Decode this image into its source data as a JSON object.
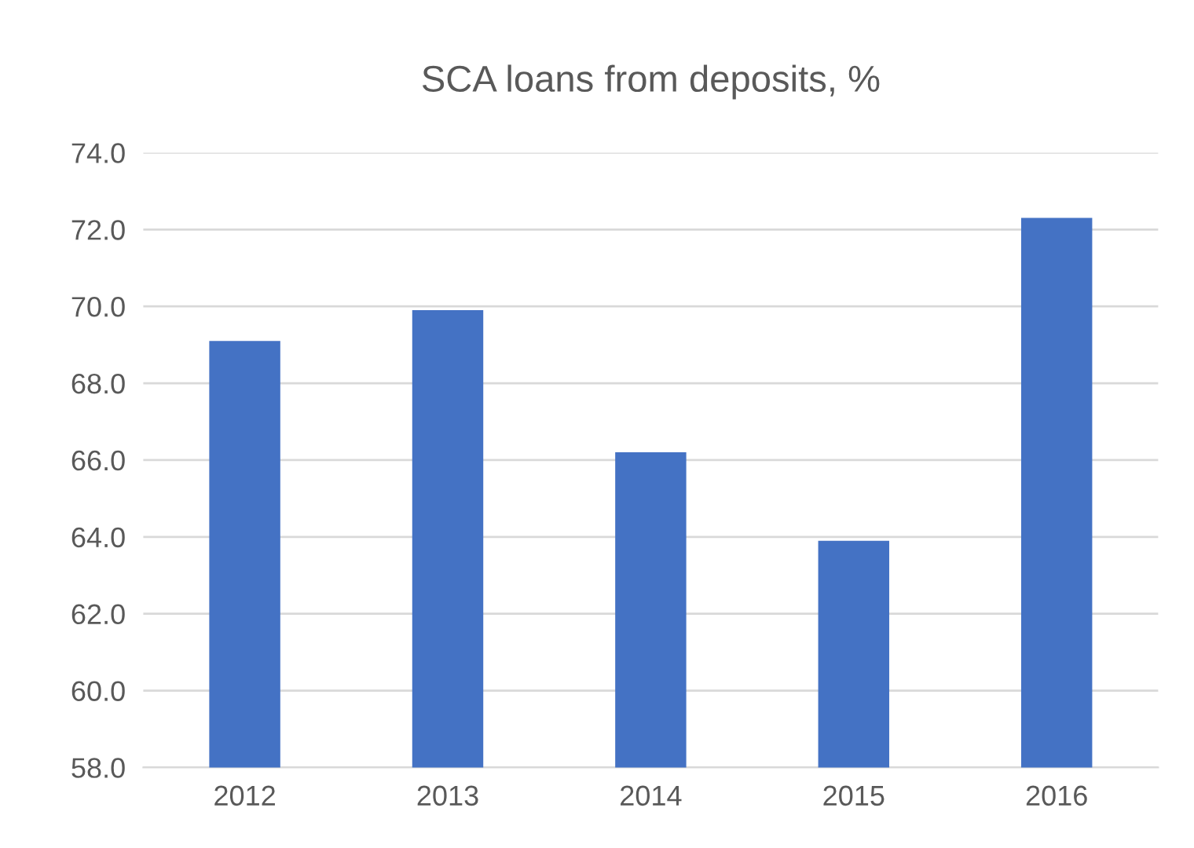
{
  "chart_data": {
    "type": "bar",
    "title": "SCA loans from deposits, %",
    "categories": [
      "2012",
      "2013",
      "2014",
      "2015",
      "2016"
    ],
    "values": [
      69.1,
      69.9,
      66.2,
      63.9,
      72.3
    ],
    "color": "#4472c4",
    "ylim": [
      58,
      74
    ],
    "yticks": [
      {
        "value": 58,
        "label": "58.0"
      },
      {
        "value": 60,
        "label": "60.0"
      },
      {
        "value": 62,
        "label": "62.0"
      },
      {
        "value": 64,
        "label": "64.0"
      },
      {
        "value": 66,
        "label": "66.0"
      },
      {
        "value": 68,
        "label": "68.0"
      },
      {
        "value": 70,
        "label": "70.0"
      },
      {
        "value": 72,
        "label": "72.0"
      },
      {
        "value": 74,
        "label": "74.0"
      }
    ],
    "grid": "y",
    "legend": false
  }
}
